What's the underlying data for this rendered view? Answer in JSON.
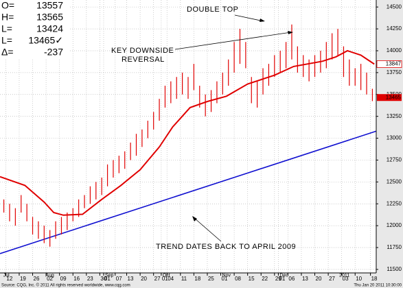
{
  "chart_data": {
    "type": "ohlc",
    "info": [
      {
        "label": "O=",
        "text": "13557"
      },
      {
        "label": "H=",
        "text": "13565"
      },
      {
        "label": "L=",
        "text": "13424"
      },
      {
        "label": "L=",
        "text": "13465✓"
      },
      {
        "label": "Δ=",
        "text": "-237"
      }
    ],
    "annotations": {
      "double_top": "DOUBLE TOP",
      "reversal_1": "KEY DOWNSIDE",
      "reversal_2": "REVERSAL",
      "trend": "TREND DATES BACK TO APRIL 2009"
    },
    "source": "Source: CQG, Inc. © 2011 All rights reserved worldwide, www.cqg.com",
    "timestamp": "Thu Jan 20 2011 10:30:00",
    "ylim": [
      11460,
      14580
    ],
    "yticks": [
      11500,
      11750,
      12000,
      12250,
      12500,
      12750,
      13000,
      13250,
      13500,
      13750,
      14000,
      14250,
      14500
    ],
    "xlim": [
      -3,
      193
    ],
    "xticks": [
      {
        "value": 0,
        "label": "12"
      },
      {
        "value": 7,
        "label": "19"
      },
      {
        "value": 14,
        "label": "26"
      },
      {
        "value": 21,
        "label": "02"
      },
      {
        "value": 28,
        "label": "09"
      },
      {
        "value": 35,
        "label": "16"
      },
      {
        "value": 42,
        "label": "23"
      },
      {
        "value": 49,
        "label": "30"
      },
      {
        "value": 51,
        "label": "01"
      },
      {
        "value": 57,
        "label": "07"
      },
      {
        "value": 63,
        "label": "13"
      },
      {
        "value": 70,
        "label": "20"
      },
      {
        "value": 77,
        "label": "27"
      },
      {
        "value": 81,
        "label": "01"
      },
      {
        "value": 84,
        "label": "04"
      },
      {
        "value": 91,
        "label": "11"
      },
      {
        "value": 98,
        "label": "18"
      },
      {
        "value": 105,
        "label": "25"
      },
      {
        "value": 112,
        "label": "01"
      },
      {
        "value": 119,
        "label": "08"
      },
      {
        "value": 126,
        "label": "15"
      },
      {
        "value": 133,
        "label": "22"
      },
      {
        "value": 140,
        "label": "29"
      },
      {
        "value": 142,
        "label": "01"
      },
      {
        "value": 147,
        "label": "06"
      },
      {
        "value": 154,
        "label": "13"
      },
      {
        "value": 161,
        "label": "20"
      },
      {
        "value": 168,
        "label": "27"
      },
      {
        "value": 175,
        "label": "03"
      },
      {
        "value": 182,
        "label": "10"
      },
      {
        "value": 190,
        "label": "18"
      }
    ],
    "month_labels": [
      {
        "value": -2,
        "label": "Jul"
      },
      {
        "value": 20,
        "label": "Aug"
      },
      {
        "value": 51,
        "label": "Sep"
      },
      {
        "value": 81,
        "label": "Oct"
      },
      {
        "value": 112,
        "label": "Nov"
      },
      {
        "value": 142,
        "label": "Dec"
      },
      {
        "value": 173,
        "label": "2011"
      }
    ],
    "grid": true,
    "bars": {
      "color": "#e00000",
      "x": [
        -1,
        2,
        5,
        8,
        11,
        14,
        17,
        20,
        23,
        26,
        29,
        32,
        35,
        38,
        41,
        44,
        47,
        50,
        53,
        56,
        59,
        62,
        65,
        68,
        71,
        74,
        77,
        80,
        83,
        86,
        89,
        92,
        95,
        98,
        101,
        104,
        107,
        110,
        113,
        116,
        119,
        122,
        125,
        128,
        131,
        134,
        137,
        140,
        143,
        146,
        149,
        152,
        155,
        158,
        161,
        164,
        167,
        170,
        173,
        176,
        179,
        182,
        185,
        188,
        191
      ],
      "high": [
        12300,
        12250,
        12200,
        12350,
        12250,
        12100,
        12050,
        12000,
        11950,
        12050,
        12100,
        12150,
        12200,
        12300,
        12350,
        12450,
        12500,
        12550,
        12700,
        12750,
        12800,
        12850,
        12950,
        13050,
        13100,
        13200,
        13300,
        13450,
        13600,
        13650,
        13700,
        13750,
        13700,
        13850,
        13600,
        13500,
        13550,
        13650,
        13750,
        13900,
        14100,
        14250,
        14100,
        13700,
        13650,
        13800,
        13850,
        13950,
        14000,
        14100,
        14300,
        14050,
        13950,
        13900,
        13950,
        14000,
        14100,
        14200,
        14250,
        14050,
        13900,
        13800,
        13850,
        13750,
        13565
      ],
      "low": [
        12150,
        12050,
        12000,
        12150,
        12050,
        11900,
        11850,
        11800,
        11760,
        11850,
        11900,
        11950,
        12050,
        12100,
        12200,
        12250,
        12300,
        12350,
        12450,
        12550,
        12600,
        12650,
        12750,
        12800,
        12900,
        13000,
        13100,
        13200,
        13350,
        13400,
        13450,
        13500,
        13450,
        13550,
        13350,
        13250,
        13300,
        13400,
        13500,
        13600,
        13750,
        13850,
        13800,
        13400,
        13350,
        13500,
        13600,
        13700,
        13750,
        13800,
        13900,
        13750,
        13700,
        13650,
        13700,
        13750,
        13800,
        13900,
        13950,
        13700,
        13600,
        13600,
        13550,
        13500,
        13424
      ]
    },
    "ma": {
      "color": "#e00000",
      "x": [
        -3,
        10,
        20,
        25,
        30,
        40,
        50,
        60,
        70,
        80,
        87,
        96,
        105,
        115,
        126,
        140,
        150,
        165,
        172,
        178,
        185,
        192
      ],
      "values": [
        12560,
        12460,
        12270,
        12150,
        12120,
        12130,
        12300,
        12460,
        12640,
        12900,
        13130,
        13350,
        13420,
        13480,
        13620,
        13720,
        13820,
        13880,
        13930,
        14000,
        13950,
        13847
      ]
    },
    "trend": {
      "color": "#1010d0",
      "x": [
        -3,
        193
      ],
      "values": [
        11680,
        13080
      ]
    },
    "ma_last": 13847,
    "last_price": 13465
  }
}
